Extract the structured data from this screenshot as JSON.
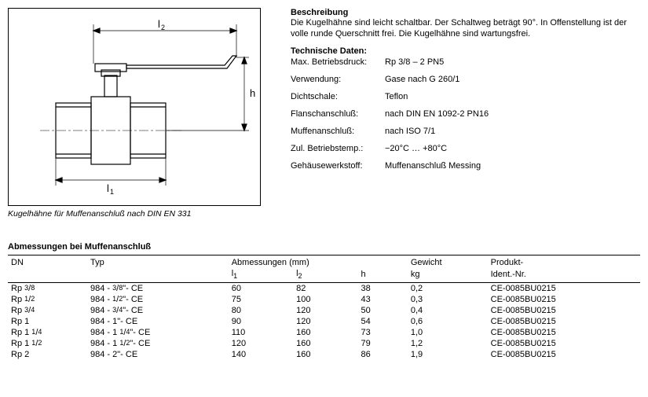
{
  "diagram": {
    "caption": "Kugelhähne für Muffenanschluß nach DIN EN 331",
    "labels": {
      "l1": "l₁",
      "l2": "l₂",
      "h": "h"
    }
  },
  "description": {
    "heading": "Beschreibung",
    "text": "Die Kugelhähne sind leicht schaltbar. Der Schaltweg beträgt 90°. In Offenstellung ist der volle runde Querschnitt frei. Die Kugelhähne sind wartungsfrei."
  },
  "tech": {
    "heading": "Technische Daten:",
    "rows": [
      {
        "label": "Max. Betriebsdruck:",
        "value": "Rp 3/8 – 2    PN5"
      },
      {
        "label": "Verwendung:",
        "value": "Gase nach G 260/1"
      },
      {
        "label": "Dichtschale:",
        "value": "Teflon"
      },
      {
        "label": "Flanschanschluß:",
        "value": "nach DIN EN 1092-2 PN16"
      },
      {
        "label": "Muffenanschluß:",
        "value": "nach ISO 7/1"
      },
      {
        "label": "Zul. Betriebstemp.:",
        "value": "−20°C … +80°C"
      },
      {
        "label": "Gehäusewerkstoff:",
        "value": "Muffenanschluß Messing"
      }
    ]
  },
  "dimsTable": {
    "heading": "Abmessungen bei Muffenanschluß",
    "columns": {
      "dn": "DN",
      "typ": "Typ",
      "abm": "Abmessungen (mm)",
      "l1": "l₁",
      "l2": "l₂",
      "h": "h",
      "gewicht": "Gewicht",
      "kg": "kg",
      "prod": "Produkt-",
      "ident": "Ident.-Nr."
    },
    "rows": [
      {
        "dn": "Rp ³/₈",
        "typ": "984 - ³/₈\"- CE",
        "l1": "60",
        "l2": "82",
        "h": "38",
        "kg": "0,2",
        "ident": "CE-0085BU0215"
      },
      {
        "dn": "Rp ¹/₂",
        "typ": "984 - ¹/₂\"- CE",
        "l1": "75",
        "l2": "100",
        "h": "43",
        "kg": "0,3",
        "ident": "CE-0085BU0215"
      },
      {
        "dn": "Rp ³/₄",
        "typ": "984 - ³/₄\"- CE",
        "l1": "80",
        "l2": "120",
        "h": "50",
        "kg": "0,4",
        "ident": "CE-0085BU0215"
      },
      {
        "dn": "Rp 1",
        "typ": "984 - 1\"- CE",
        "l1": "90",
        "l2": "120",
        "h": "54",
        "kg": "0,6",
        "ident": "CE-0085BU0215"
      },
      {
        "dn": "Rp 1 ¹/₄",
        "typ": "984 - 1 ¹/₄\"- CE",
        "l1": "110",
        "l2": "160",
        "h": "73",
        "kg": "1,0",
        "ident": "CE-0085BU0215"
      },
      {
        "dn": "Rp 1 ¹/₂",
        "typ": "984 - 1 ¹/₂\"- CE",
        "l1": "120",
        "l2": "160",
        "h": "79",
        "kg": "1,2",
        "ident": "CE-0085BU0215"
      },
      {
        "dn": "Rp 2",
        "typ": "984 - 2\"- CE",
        "l1": "140",
        "l2": "160",
        "h": "86",
        "kg": "1,9",
        "ident": "CE-0085BU0215"
      }
    ]
  },
  "style": {
    "fontsize_body": 11,
    "fontsize_caption": 10.5,
    "line_color": "#000000",
    "background_color": "#ffffff"
  }
}
